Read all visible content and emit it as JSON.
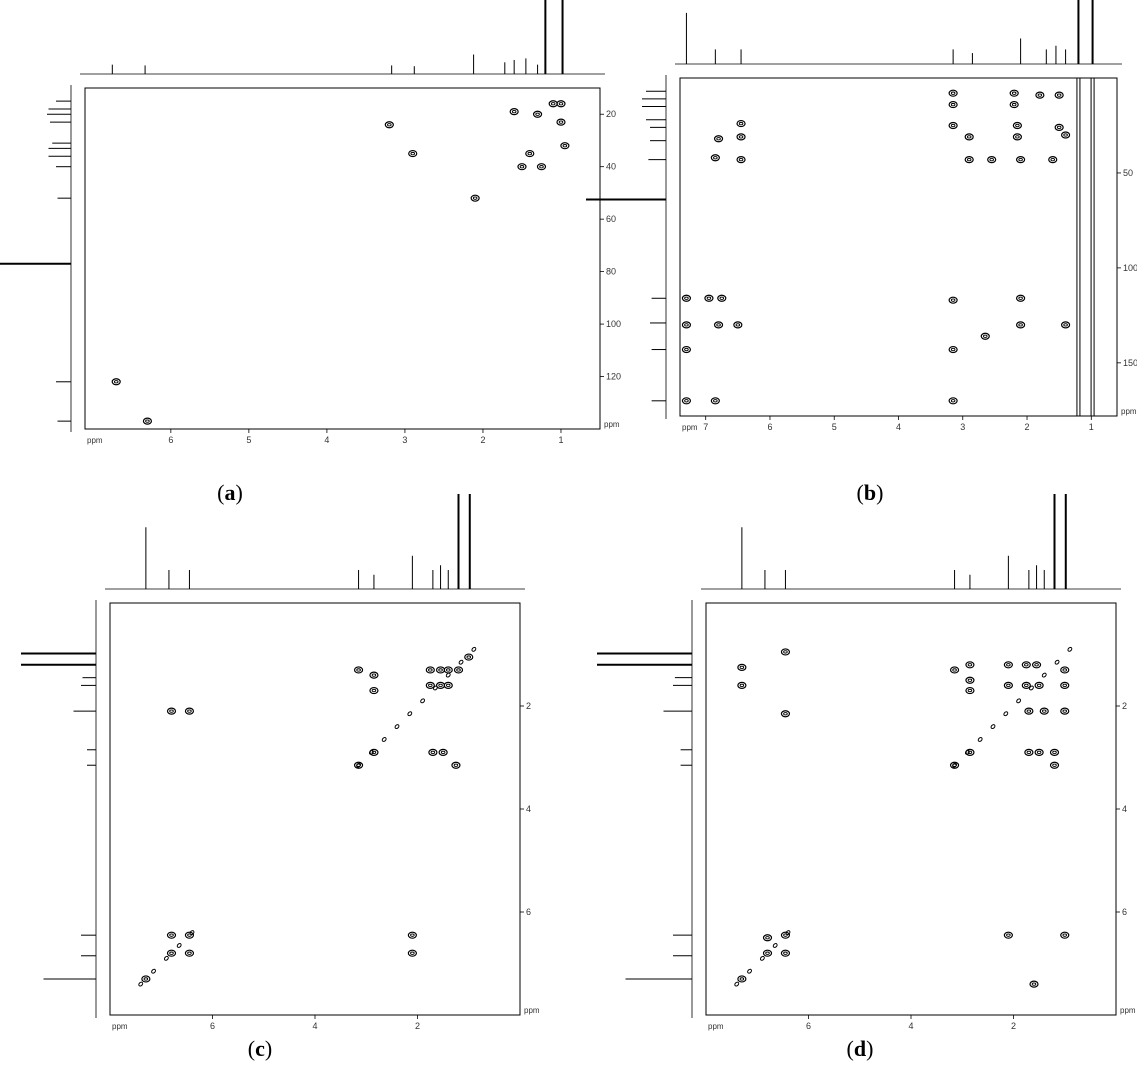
{
  "figure": {
    "captions": [
      "(a)",
      "(b)",
      "(c)",
      "(d)"
    ],
    "caption_letters": [
      "a",
      "b",
      "c",
      "d"
    ]
  },
  "chart_data": [
    {
      "type": "scatter",
      "id": "a",
      "xlabel": "ppm",
      "ylabel": "ppm",
      "x_ticks": [
        6,
        5,
        4,
        3,
        2,
        1
      ],
      "y_ticks": [
        20,
        40,
        60,
        80,
        100,
        120
      ],
      "x_range": [
        7.1,
        0.5
      ],
      "y_range": [
        10,
        140
      ],
      "reversed_axes": true,
      "peaks": [
        {
          "x": 1.1,
          "y": 16
        },
        {
          "x": 1.0,
          "y": 16
        },
        {
          "x": 1.6,
          "y": 19
        },
        {
          "x": 1.3,
          "y": 20
        },
        {
          "x": 1.0,
          "y": 23
        },
        {
          "x": 3.2,
          "y": 24
        },
        {
          "x": 1.4,
          "y": 35
        },
        {
          "x": 2.9,
          "y": 35
        },
        {
          "x": 0.95,
          "y": 32
        },
        {
          "x": 1.5,
          "y": 40
        },
        {
          "x": 1.25,
          "y": 40
        },
        {
          "x": 2.1,
          "y": 52
        },
        {
          "x": 6.7,
          "y": 122
        },
        {
          "x": 6.3,
          "y": 137
        }
      ],
      "top_projection": [
        {
          "x": 6.75,
          "h": 0.12
        },
        {
          "x": 6.33,
          "h": 0.11
        },
        {
          "x": 3.17,
          "h": 0.11
        },
        {
          "x": 2.88,
          "h": 0.1
        },
        {
          "x": 2.12,
          "h": 0.25
        },
        {
          "x": 1.72,
          "h": 0.15
        },
        {
          "x": 1.6,
          "h": 0.18
        },
        {
          "x": 1.45,
          "h": 0.2
        },
        {
          "x": 1.3,
          "h": 0.12
        },
        {
          "x": 1.2,
          "h": 1.0
        },
        {
          "x": 0.98,
          "h": 1.0
        }
      ],
      "left_projection": [
        {
          "y": 15,
          "h": 0.2
        },
        {
          "y": 18,
          "h": 0.3
        },
        {
          "y": 20,
          "h": 0.32
        },
        {
          "y": 23,
          "h": 0.28
        },
        {
          "y": 31,
          "h": 0.25
        },
        {
          "y": 33,
          "h": 0.3
        },
        {
          "y": 36,
          "h": 0.3
        },
        {
          "y": 40,
          "h": 0.2
        },
        {
          "y": 52,
          "h": 0.18
        },
        {
          "y": 77,
          "h": 1.0
        },
        {
          "y": 122,
          "h": 0.2
        },
        {
          "y": 137,
          "h": 0.18
        }
      ]
    },
    {
      "type": "scatter",
      "id": "b",
      "xlabel": "ppm",
      "ylabel": "ppm",
      "x_ticks": [
        7,
        6,
        5,
        4,
        3,
        2,
        1
      ],
      "y_ticks": [
        50,
        100,
        150
      ],
      "x_range": [
        7.4,
        0.6
      ],
      "y_range": [
        0,
        178
      ],
      "reversed_axes": true,
      "peaks": [
        {
          "x": 3.15,
          "y": 8
        },
        {
          "x": 3.15,
          "y": 14
        },
        {
          "x": 2.2,
          "y": 8
        },
        {
          "x": 2.2,
          "y": 14
        },
        {
          "x": 1.8,
          "y": 9
        },
        {
          "x": 1.5,
          "y": 9
        },
        {
          "x": 3.15,
          "y": 25
        },
        {
          "x": 2.15,
          "y": 25
        },
        {
          "x": 2.15,
          "y": 31
        },
        {
          "x": 1.5,
          "y": 26
        },
        {
          "x": 1.4,
          "y": 30
        },
        {
          "x": 2.9,
          "y": 31
        },
        {
          "x": 6.45,
          "y": 24
        },
        {
          "x": 6.8,
          "y": 32
        },
        {
          "x": 6.45,
          "y": 31
        },
        {
          "x": 6.85,
          "y": 42
        },
        {
          "x": 6.45,
          "y": 43
        },
        {
          "x": 2.9,
          "y": 43
        },
        {
          "x": 2.55,
          "y": 43
        },
        {
          "x": 2.1,
          "y": 43
        },
        {
          "x": 1.6,
          "y": 43
        },
        {
          "x": 7.3,
          "y": 116
        },
        {
          "x": 6.95,
          "y": 116
        },
        {
          "x": 6.75,
          "y": 116
        },
        {
          "x": 3.15,
          "y": 117
        },
        {
          "x": 2.1,
          "y": 116
        },
        {
          "x": 7.3,
          "y": 130
        },
        {
          "x": 6.8,
          "y": 130
        },
        {
          "x": 6.5,
          "y": 130
        },
        {
          "x": 2.1,
          "y": 130
        },
        {
          "x": 1.4,
          "y": 130
        },
        {
          "x": 7.3,
          "y": 143
        },
        {
          "x": 3.15,
          "y": 143
        },
        {
          "x": 2.65,
          "y": 136
        },
        {
          "x": 7.3,
          "y": 170
        },
        {
          "x": 6.85,
          "y": 170
        },
        {
          "x": 3.15,
          "y": 170
        }
      ],
      "top_projection": [
        {
          "x": 7.3,
          "h": 0.7
        },
        {
          "x": 6.85,
          "h": 0.2
        },
        {
          "x": 6.45,
          "h": 0.2
        },
        {
          "x": 3.15,
          "h": 0.2
        },
        {
          "x": 2.85,
          "h": 0.15
        },
        {
          "x": 2.1,
          "h": 0.35
        },
        {
          "x": 1.7,
          "h": 0.2
        },
        {
          "x": 1.55,
          "h": 0.25
        },
        {
          "x": 1.4,
          "h": 0.2
        },
        {
          "x": 1.2,
          "h": 1.0
        },
        {
          "x": 0.98,
          "h": 1.0
        }
      ],
      "left_projection": [
        {
          "y": 7,
          "h": 0.25
        },
        {
          "y": 11,
          "h": 0.3
        },
        {
          "y": 15,
          "h": 0.3
        },
        {
          "y": 22,
          "h": 0.25
        },
        {
          "y": 26,
          "h": 0.2
        },
        {
          "y": 33,
          "h": 0.2
        },
        {
          "y": 43,
          "h": 0.22
        },
        {
          "y": 64,
          "h": 1.0
        },
        {
          "y": 116,
          "h": 0.18
        },
        {
          "y": 129,
          "h": 0.2
        },
        {
          "y": 143,
          "h": 0.18
        },
        {
          "y": 170,
          "h": 0.18
        }
      ]
    },
    {
      "type": "scatter",
      "id": "c",
      "xlabel": "ppm",
      "ylabel": "ppm",
      "x_ticks": [
        6,
        4,
        2
      ],
      "y_ticks": [
        2,
        4,
        6
      ],
      "x_range": [
        8.0,
        0.0
      ],
      "y_range": [
        0.0,
        8.0
      ],
      "reversed_axes": true,
      "peaks": [
        {
          "x": 6.8,
          "y": 2.1
        },
        {
          "x": 6.45,
          "y": 2.1
        },
        {
          "x": 3.15,
          "y": 1.3
        },
        {
          "x": 2.85,
          "y": 1.4
        },
        {
          "x": 2.85,
          "y": 1.7
        },
        {
          "x": 1.75,
          "y": 1.3
        },
        {
          "x": 1.55,
          "y": 1.3
        },
        {
          "x": 1.4,
          "y": 1.3
        },
        {
          "x": 1.75,
          "y": 1.6
        },
        {
          "x": 1.55,
          "y": 1.6
        },
        {
          "x": 1.4,
          "y": 1.6
        },
        {
          "x": 1.2,
          "y": 1.3
        },
        {
          "x": 1.0,
          "y": 1.05
        },
        {
          "x": 1.7,
          "y": 2.9
        },
        {
          "x": 1.5,
          "y": 2.9
        },
        {
          "x": 1.25,
          "y": 3.15
        },
        {
          "x": 2.85,
          "y": 2.9
        },
        {
          "x": 3.15,
          "y": 3.15
        },
        {
          "x": 6.8,
          "y": 6.45
        },
        {
          "x": 6.45,
          "y": 6.45
        },
        {
          "x": 6.8,
          "y": 6.8
        },
        {
          "x": 6.45,
          "y": 6.8
        },
        {
          "x": 2.1,
          "y": 6.45
        },
        {
          "x": 2.1,
          "y": 6.8
        },
        {
          "x": 7.3,
          "y": 7.3
        }
      ],
      "diagonal": true,
      "top_projection": [
        {
          "x": 7.3,
          "h": 0.65
        },
        {
          "x": 6.85,
          "h": 0.2
        },
        {
          "x": 6.45,
          "h": 0.2
        },
        {
          "x": 3.15,
          "h": 0.2
        },
        {
          "x": 2.85,
          "h": 0.15
        },
        {
          "x": 2.1,
          "h": 0.35
        },
        {
          "x": 1.7,
          "h": 0.2
        },
        {
          "x": 1.55,
          "h": 0.25
        },
        {
          "x": 1.4,
          "h": 0.2
        },
        {
          "x": 1.2,
          "h": 1.0
        },
        {
          "x": 0.98,
          "h": 1.0
        }
      ],
      "left_projection": [
        {
          "y": 0.98,
          "h": 1.0
        },
        {
          "y": 1.2,
          "h": 1.0
        },
        {
          "y": 1.45,
          "h": 0.18
        },
        {
          "y": 1.6,
          "h": 0.2
        },
        {
          "y": 2.1,
          "h": 0.3
        },
        {
          "y": 2.85,
          "h": 0.12
        },
        {
          "y": 3.15,
          "h": 0.12
        },
        {
          "y": 6.45,
          "h": 0.2
        },
        {
          "y": 6.85,
          "h": 0.2
        },
        {
          "y": 7.3,
          "h": 0.7
        }
      ]
    },
    {
      "type": "scatter",
      "id": "d",
      "xlabel": "ppm",
      "ylabel": "ppm",
      "x_ticks": [
        6,
        4,
        2
      ],
      "y_ticks": [
        2,
        4,
        6
      ],
      "x_range": [
        8.0,
        0.0
      ],
      "y_range": [
        0.0,
        8.0
      ],
      "reversed_axes": true,
      "peaks": [
        {
          "x": 7.3,
          "y": 1.25
        },
        {
          "x": 7.3,
          "y": 1.6
        },
        {
          "x": 6.45,
          "y": 0.95
        },
        {
          "x": 6.45,
          "y": 2.15
        },
        {
          "x": 3.15,
          "y": 1.3
        },
        {
          "x": 2.85,
          "y": 1.2
        },
        {
          "x": 2.85,
          "y": 1.5
        },
        {
          "x": 2.85,
          "y": 1.7
        },
        {
          "x": 2.1,
          "y": 1.2
        },
        {
          "x": 2.1,
          "y": 1.6
        },
        {
          "x": 1.75,
          "y": 1.2
        },
        {
          "x": 1.55,
          "y": 1.2
        },
        {
          "x": 1.75,
          "y": 1.6
        },
        {
          "x": 1.5,
          "y": 1.6
        },
        {
          "x": 1.0,
          "y": 1.3
        },
        {
          "x": 1.0,
          "y": 1.6
        },
        {
          "x": 1.7,
          "y": 2.1
        },
        {
          "x": 1.4,
          "y": 2.1
        },
        {
          "x": 1.0,
          "y": 2.1
        },
        {
          "x": 1.7,
          "y": 2.9
        },
        {
          "x": 1.5,
          "y": 2.9
        },
        {
          "x": 1.2,
          "y": 2.9
        },
        {
          "x": 1.2,
          "y": 3.15
        },
        {
          "x": 2.85,
          "y": 2.9
        },
        {
          "x": 3.15,
          "y": 3.15
        },
        {
          "x": 6.8,
          "y": 6.5
        },
        {
          "x": 6.45,
          "y": 6.45
        },
        {
          "x": 6.8,
          "y": 6.8
        },
        {
          "x": 6.45,
          "y": 6.8
        },
        {
          "x": 2.1,
          "y": 6.45
        },
        {
          "x": 1.0,
          "y": 6.45
        },
        {
          "x": 1.6,
          "y": 7.4
        },
        {
          "x": 7.3,
          "y": 7.3
        }
      ],
      "diagonal": true,
      "top_projection": [
        {
          "x": 7.3,
          "h": 0.65
        },
        {
          "x": 6.85,
          "h": 0.2
        },
        {
          "x": 6.45,
          "h": 0.2
        },
        {
          "x": 3.15,
          "h": 0.2
        },
        {
          "x": 2.85,
          "h": 0.15
        },
        {
          "x": 2.1,
          "h": 0.35
        },
        {
          "x": 1.7,
          "h": 0.2
        },
        {
          "x": 1.55,
          "h": 0.25
        },
        {
          "x": 1.4,
          "h": 0.2
        },
        {
          "x": 1.2,
          "h": 1.0
        },
        {
          "x": 0.98,
          "h": 1.0
        }
      ],
      "left_projection": [
        {
          "y": 0.98,
          "h": 1.0
        },
        {
          "y": 1.2,
          "h": 1.0
        },
        {
          "y": 1.45,
          "h": 0.18
        },
        {
          "y": 1.6,
          "h": 0.2
        },
        {
          "y": 2.1,
          "h": 0.3
        },
        {
          "y": 2.85,
          "h": 0.12
        },
        {
          "y": 3.15,
          "h": 0.12
        },
        {
          "y": 6.45,
          "h": 0.2
        },
        {
          "y": 6.85,
          "h": 0.2
        },
        {
          "y": 7.3,
          "h": 0.7
        }
      ]
    }
  ]
}
